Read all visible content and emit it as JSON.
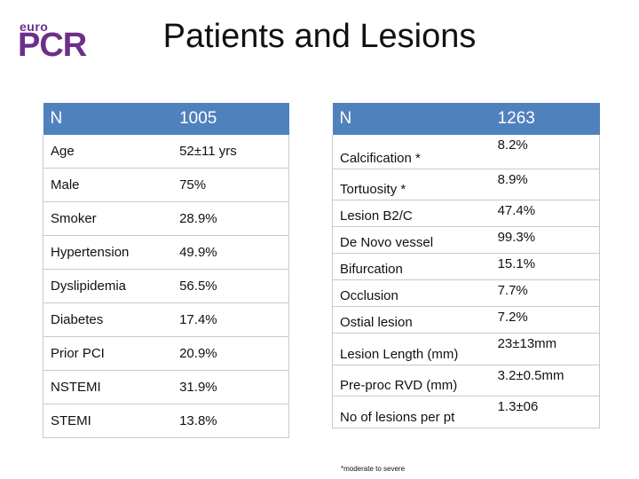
{
  "logo": {
    "small": "euro",
    "big": "PCR"
  },
  "title": "Patients and Lesions",
  "patients": {
    "header": {
      "label": "N",
      "value": "1005"
    },
    "rows": [
      {
        "label": "Age",
        "value": "52±11 yrs"
      },
      {
        "label": "Male",
        "value": "75%"
      },
      {
        "label": "Smoker",
        "value": "28.9%"
      },
      {
        "label": "Hypertension",
        "value": "49.9%"
      },
      {
        "label": "Dyslipidemia",
        "value": "56.5%"
      },
      {
        "label": "Diabetes",
        "value": "17.4%"
      },
      {
        "label": "Prior PCI",
        "value": "20.9%"
      },
      {
        "label": "NSTEMI",
        "value": "31.9%"
      },
      {
        "label": "STEMI",
        "value": "13.8%"
      }
    ]
  },
  "lesions": {
    "header": {
      "label": "N",
      "value": "1263"
    },
    "rows": [
      {
        "label": "Calcification *",
        "value": "8.2%"
      },
      {
        "label": "Tortuosity *",
        "value": "8.9%"
      },
      {
        "label": "Lesion B2/C",
        "value": "47.4%"
      },
      {
        "label": "De Novo vessel",
        "value": "99.3%"
      },
      {
        "label": "Bifurcation",
        "value": "15.1%"
      },
      {
        "label": "Occlusion",
        "value": "7.7%"
      },
      {
        "label": "Ostial lesion",
        "value": "7.2%"
      },
      {
        "label": "Lesion Length (mm)",
        "value": "23±13mm"
      },
      {
        "label": "Pre-proc RVD (mm)",
        "value": "3.2±0.5mm"
      },
      {
        "label": "No of lesions per pt",
        "value": "1.3±06"
      }
    ]
  },
  "footnote": "*moderate to severe"
}
